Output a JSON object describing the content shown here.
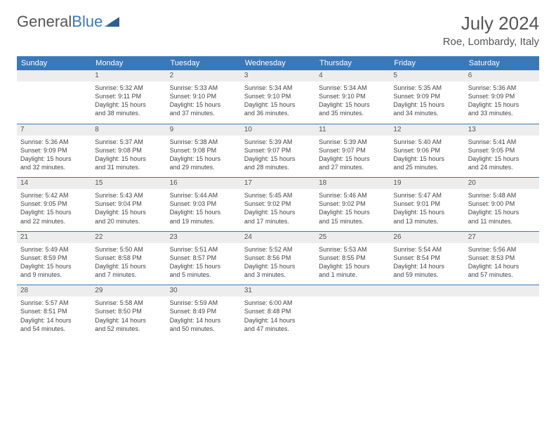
{
  "logo": {
    "text1": "General",
    "text2": "Blue"
  },
  "header": {
    "month": "July 2024",
    "location": "Roe, Lombardy, Italy"
  },
  "colors": {
    "header_bg": "#3b78b8",
    "daynum_bg": "#ededed",
    "text": "#444444"
  },
  "weekdays": [
    "Sunday",
    "Monday",
    "Tuesday",
    "Wednesday",
    "Thursday",
    "Friday",
    "Saturday"
  ],
  "weeks": [
    {
      "nums": [
        "",
        "1",
        "2",
        "3",
        "4",
        "5",
        "6"
      ],
      "cells": [
        {},
        {
          "sunrise": "Sunrise: 5:32 AM",
          "sunset": "Sunset: 9:11 PM",
          "day1": "Daylight: 15 hours",
          "day2": "and 38 minutes."
        },
        {
          "sunrise": "Sunrise: 5:33 AM",
          "sunset": "Sunset: 9:10 PM",
          "day1": "Daylight: 15 hours",
          "day2": "and 37 minutes."
        },
        {
          "sunrise": "Sunrise: 5:34 AM",
          "sunset": "Sunset: 9:10 PM",
          "day1": "Daylight: 15 hours",
          "day2": "and 36 minutes."
        },
        {
          "sunrise": "Sunrise: 5:34 AM",
          "sunset": "Sunset: 9:10 PM",
          "day1": "Daylight: 15 hours",
          "day2": "and 35 minutes."
        },
        {
          "sunrise": "Sunrise: 5:35 AM",
          "sunset": "Sunset: 9:09 PM",
          "day1": "Daylight: 15 hours",
          "day2": "and 34 minutes."
        },
        {
          "sunrise": "Sunrise: 5:36 AM",
          "sunset": "Sunset: 9:09 PM",
          "day1": "Daylight: 15 hours",
          "day2": "and 33 minutes."
        }
      ]
    },
    {
      "nums": [
        "7",
        "8",
        "9",
        "10",
        "11",
        "12",
        "13"
      ],
      "cells": [
        {
          "sunrise": "Sunrise: 5:36 AM",
          "sunset": "Sunset: 9:09 PM",
          "day1": "Daylight: 15 hours",
          "day2": "and 32 minutes."
        },
        {
          "sunrise": "Sunrise: 5:37 AM",
          "sunset": "Sunset: 9:08 PM",
          "day1": "Daylight: 15 hours",
          "day2": "and 31 minutes."
        },
        {
          "sunrise": "Sunrise: 5:38 AM",
          "sunset": "Sunset: 9:08 PM",
          "day1": "Daylight: 15 hours",
          "day2": "and 29 minutes."
        },
        {
          "sunrise": "Sunrise: 5:39 AM",
          "sunset": "Sunset: 9:07 PM",
          "day1": "Daylight: 15 hours",
          "day2": "and 28 minutes."
        },
        {
          "sunrise": "Sunrise: 5:39 AM",
          "sunset": "Sunset: 9:07 PM",
          "day1": "Daylight: 15 hours",
          "day2": "and 27 minutes."
        },
        {
          "sunrise": "Sunrise: 5:40 AM",
          "sunset": "Sunset: 9:06 PM",
          "day1": "Daylight: 15 hours",
          "day2": "and 25 minutes."
        },
        {
          "sunrise": "Sunrise: 5:41 AM",
          "sunset": "Sunset: 9:05 PM",
          "day1": "Daylight: 15 hours",
          "day2": "and 24 minutes."
        }
      ]
    },
    {
      "nums": [
        "14",
        "15",
        "16",
        "17",
        "18",
        "19",
        "20"
      ],
      "cells": [
        {
          "sunrise": "Sunrise: 5:42 AM",
          "sunset": "Sunset: 9:05 PM",
          "day1": "Daylight: 15 hours",
          "day2": "and 22 minutes."
        },
        {
          "sunrise": "Sunrise: 5:43 AM",
          "sunset": "Sunset: 9:04 PM",
          "day1": "Daylight: 15 hours",
          "day2": "and 20 minutes."
        },
        {
          "sunrise": "Sunrise: 5:44 AM",
          "sunset": "Sunset: 9:03 PM",
          "day1": "Daylight: 15 hours",
          "day2": "and 19 minutes."
        },
        {
          "sunrise": "Sunrise: 5:45 AM",
          "sunset": "Sunset: 9:02 PM",
          "day1": "Daylight: 15 hours",
          "day2": "and 17 minutes."
        },
        {
          "sunrise": "Sunrise: 5:46 AM",
          "sunset": "Sunset: 9:02 PM",
          "day1": "Daylight: 15 hours",
          "day2": "and 15 minutes."
        },
        {
          "sunrise": "Sunrise: 5:47 AM",
          "sunset": "Sunset: 9:01 PM",
          "day1": "Daylight: 15 hours",
          "day2": "and 13 minutes."
        },
        {
          "sunrise": "Sunrise: 5:48 AM",
          "sunset": "Sunset: 9:00 PM",
          "day1": "Daylight: 15 hours",
          "day2": "and 11 minutes."
        }
      ]
    },
    {
      "nums": [
        "21",
        "22",
        "23",
        "24",
        "25",
        "26",
        "27"
      ],
      "cells": [
        {
          "sunrise": "Sunrise: 5:49 AM",
          "sunset": "Sunset: 8:59 PM",
          "day1": "Daylight: 15 hours",
          "day2": "and 9 minutes."
        },
        {
          "sunrise": "Sunrise: 5:50 AM",
          "sunset": "Sunset: 8:58 PM",
          "day1": "Daylight: 15 hours",
          "day2": "and 7 minutes."
        },
        {
          "sunrise": "Sunrise: 5:51 AM",
          "sunset": "Sunset: 8:57 PM",
          "day1": "Daylight: 15 hours",
          "day2": "and 5 minutes."
        },
        {
          "sunrise": "Sunrise: 5:52 AM",
          "sunset": "Sunset: 8:56 PM",
          "day1": "Daylight: 15 hours",
          "day2": "and 3 minutes."
        },
        {
          "sunrise": "Sunrise: 5:53 AM",
          "sunset": "Sunset: 8:55 PM",
          "day1": "Daylight: 15 hours",
          "day2": "and 1 minute."
        },
        {
          "sunrise": "Sunrise: 5:54 AM",
          "sunset": "Sunset: 8:54 PM",
          "day1": "Daylight: 14 hours",
          "day2": "and 59 minutes."
        },
        {
          "sunrise": "Sunrise: 5:56 AM",
          "sunset": "Sunset: 8:53 PM",
          "day1": "Daylight: 14 hours",
          "day2": "and 57 minutes."
        }
      ]
    },
    {
      "nums": [
        "28",
        "29",
        "30",
        "31",
        "",
        "",
        ""
      ],
      "cells": [
        {
          "sunrise": "Sunrise: 5:57 AM",
          "sunset": "Sunset: 8:51 PM",
          "day1": "Daylight: 14 hours",
          "day2": "and 54 minutes."
        },
        {
          "sunrise": "Sunrise: 5:58 AM",
          "sunset": "Sunset: 8:50 PM",
          "day1": "Daylight: 14 hours",
          "day2": "and 52 minutes."
        },
        {
          "sunrise": "Sunrise: 5:59 AM",
          "sunset": "Sunset: 8:49 PM",
          "day1": "Daylight: 14 hours",
          "day2": "and 50 minutes."
        },
        {
          "sunrise": "Sunrise: 6:00 AM",
          "sunset": "Sunset: 8:48 PM",
          "day1": "Daylight: 14 hours",
          "day2": "and 47 minutes."
        },
        {},
        {},
        {}
      ]
    }
  ]
}
